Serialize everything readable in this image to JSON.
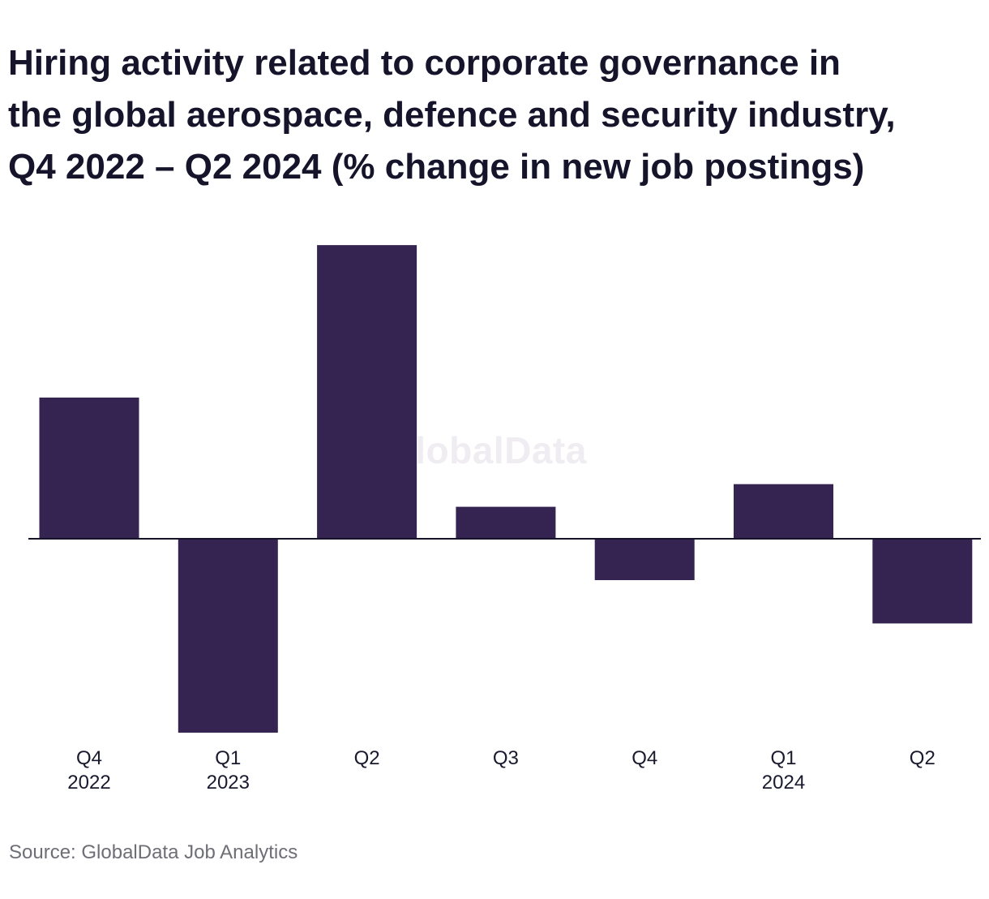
{
  "title_lines": [
    "Hiring activity related to corporate governance in",
    "the global aerospace, defence and security industry,",
    "Q4 2022 – Q2 2024 (% change in new job postings)"
  ],
  "watermark": "GlobalData",
  "source": "Source: GlobalData Job Analytics",
  "colors": {
    "bar": "#352452",
    "axis": "#15142b",
    "text": "#1a1a2e"
  },
  "chart_data": {
    "type": "bar",
    "title": "Hiring activity related to corporate governance in the global aerospace, defence and security industry, Q4 2022 – Q2 2024 (% change in new job postings)",
    "categories": [
      {
        "quarter": "Q4",
        "year": "2022"
      },
      {
        "quarter": "Q1",
        "year": "2023"
      },
      {
        "quarter": "Q2",
        "year": ""
      },
      {
        "quarter": "Q3",
        "year": ""
      },
      {
        "quarter": "Q4",
        "year": ""
      },
      {
        "quarter": "Q1",
        "year": "2024"
      },
      {
        "quarter": "Q2",
        "year": ""
      }
    ],
    "values": [
      7.5,
      -10.3,
      15.6,
      1.7,
      -2.2,
      2.9,
      -4.5
    ],
    "ylim": [
      -11,
      17
    ],
    "xlabel": "",
    "ylabel": "",
    "grid": false,
    "legend": false
  }
}
